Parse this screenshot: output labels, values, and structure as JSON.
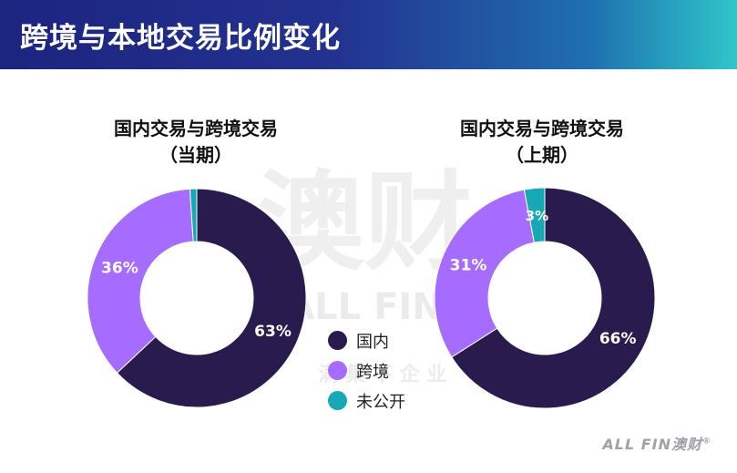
{
  "header": {
    "title": "跨境与本地交易比例变化"
  },
  "watermark": {
    "main": "澳财",
    "latin": "ALL FIN",
    "registered": "®",
    "sub": "满 集 下 企 业"
  },
  "brand": {
    "text": "ALL FIN澳财",
    "mark": "®"
  },
  "colors": {
    "domestic": "#2a1b4e",
    "cross_border": "#a66bff",
    "undisclosed": "#17a8b5",
    "header_start": "#1c2580",
    "header_end": "#2ec7c9"
  },
  "legend": [
    {
      "label": "国内",
      "color": "#2a1b4e"
    },
    {
      "label": "跨境",
      "color": "#a66bff"
    },
    {
      "label": "未公开",
      "color": "#17a8b5"
    }
  ],
  "chart_data": [
    {
      "type": "pie",
      "title": "国内交易与跨境交易",
      "subtitle": "（当期）",
      "categories": [
        "国内",
        "跨境",
        "未公开"
      ],
      "values": [
        63,
        36,
        1
      ],
      "value_labels": [
        "63%",
        "36%",
        ""
      ],
      "colors": [
        "#2a1b4e",
        "#a66bff",
        "#17a8b5"
      ],
      "donut": true
    },
    {
      "type": "pie",
      "title": "国内交易与跨境交易",
      "subtitle": "（上期）",
      "categories": [
        "国内",
        "跨境",
        "未公开"
      ],
      "values": [
        66,
        31,
        3
      ],
      "value_labels": [
        "66%",
        "31%",
        "3%"
      ],
      "colors": [
        "#2a1b4e",
        "#a66bff",
        "#17a8b5"
      ],
      "donut": true
    }
  ]
}
